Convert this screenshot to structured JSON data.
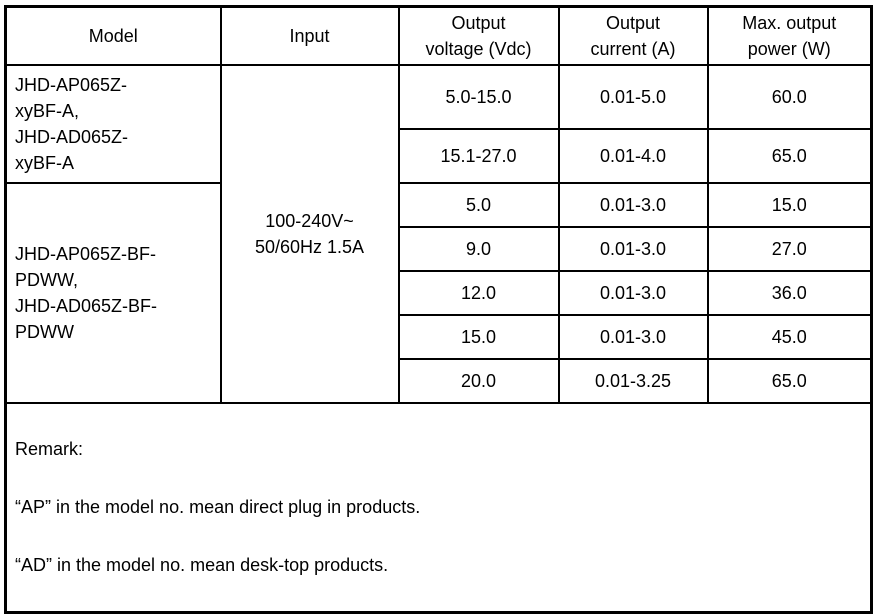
{
  "table": {
    "header": {
      "model": "Model",
      "input": "Input",
      "voltage": "Output\nvoltage (Vdc)",
      "current": "Output\ncurrent (A)",
      "power": "Max. output\npower (W)"
    },
    "input_value": "100-240V~\n50/60Hz 1.5A",
    "groups": [
      {
        "model": "JHD-AP065Z-\nxyBF-A,\nJHD-AD065Z-\nxyBF-A",
        "rows": [
          {
            "voltage": "5.0-15.0",
            "current": "0.01-5.0",
            "power": "60.0"
          },
          {
            "voltage": "15.1-27.0",
            "current": "0.01-4.0",
            "power": "65.0"
          }
        ]
      },
      {
        "model": "JHD-AP065Z-BF-\nPDWW,\nJHD-AD065Z-BF-\nPDWW",
        "rows": [
          {
            "voltage": "5.0",
            "current": "0.01-3.0",
            "power": "15.0"
          },
          {
            "voltage": "9.0",
            "current": "0.01-3.0",
            "power": "27.0"
          },
          {
            "voltage": "12.0",
            "current": "0.01-3.0",
            "power": "36.0"
          },
          {
            "voltage": "15.0",
            "current": "0.01-3.0",
            "power": "45.0"
          },
          {
            "voltage": "20.0",
            "current": "0.01-3.25",
            "power": "65.0"
          }
        ]
      }
    ],
    "remark": {
      "title": "Remark:",
      "lines": [
        "“AP” in the model no. mean direct plug in products.",
        "“AD” in the model no. mean desk-top products."
      ]
    }
  }
}
